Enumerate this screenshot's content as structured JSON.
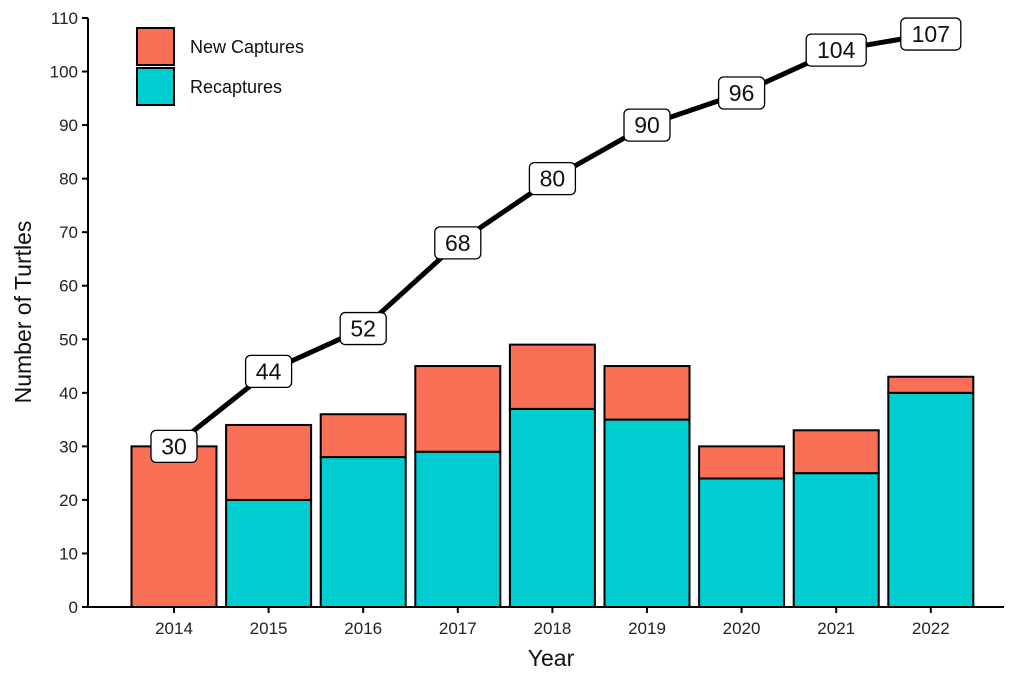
{
  "chart_data": {
    "type": "bar",
    "stacked": true,
    "title": "",
    "xlabel": "Year",
    "ylabel": "Number of Turtles",
    "ylim": [
      0,
      110
    ],
    "yticks": [
      0,
      10,
      20,
      30,
      40,
      50,
      60,
      70,
      80,
      90,
      100,
      110
    ],
    "grid": false,
    "legend_position": "top-left",
    "categories": [
      "2014",
      "2015",
      "2016",
      "2017",
      "2018",
      "2019",
      "2020",
      "2021",
      "2022"
    ],
    "series": [
      {
        "name": "Recaptures",
        "color": "#00CDD0",
        "values": [
          0,
          20,
          28,
          29,
          37,
          35,
          24,
          25,
          40
        ]
      },
      {
        "name": "New Captures",
        "color": "#FA7056",
        "values": [
          30,
          14,
          8,
          16,
          12,
          10,
          6,
          8,
          3
        ]
      }
    ],
    "line": {
      "color": "#000000",
      "values": [
        30,
        44,
        52,
        68,
        80,
        90,
        96,
        104,
        107
      ],
      "labels": [
        "30",
        "44",
        "52",
        "68",
        "80",
        "90",
        "96",
        "104",
        "107"
      ]
    },
    "legend": [
      {
        "name": "New Captures",
        "color": "#FA7056"
      },
      {
        "name": "Recaptures",
        "color": "#00CDD0"
      }
    ]
  }
}
